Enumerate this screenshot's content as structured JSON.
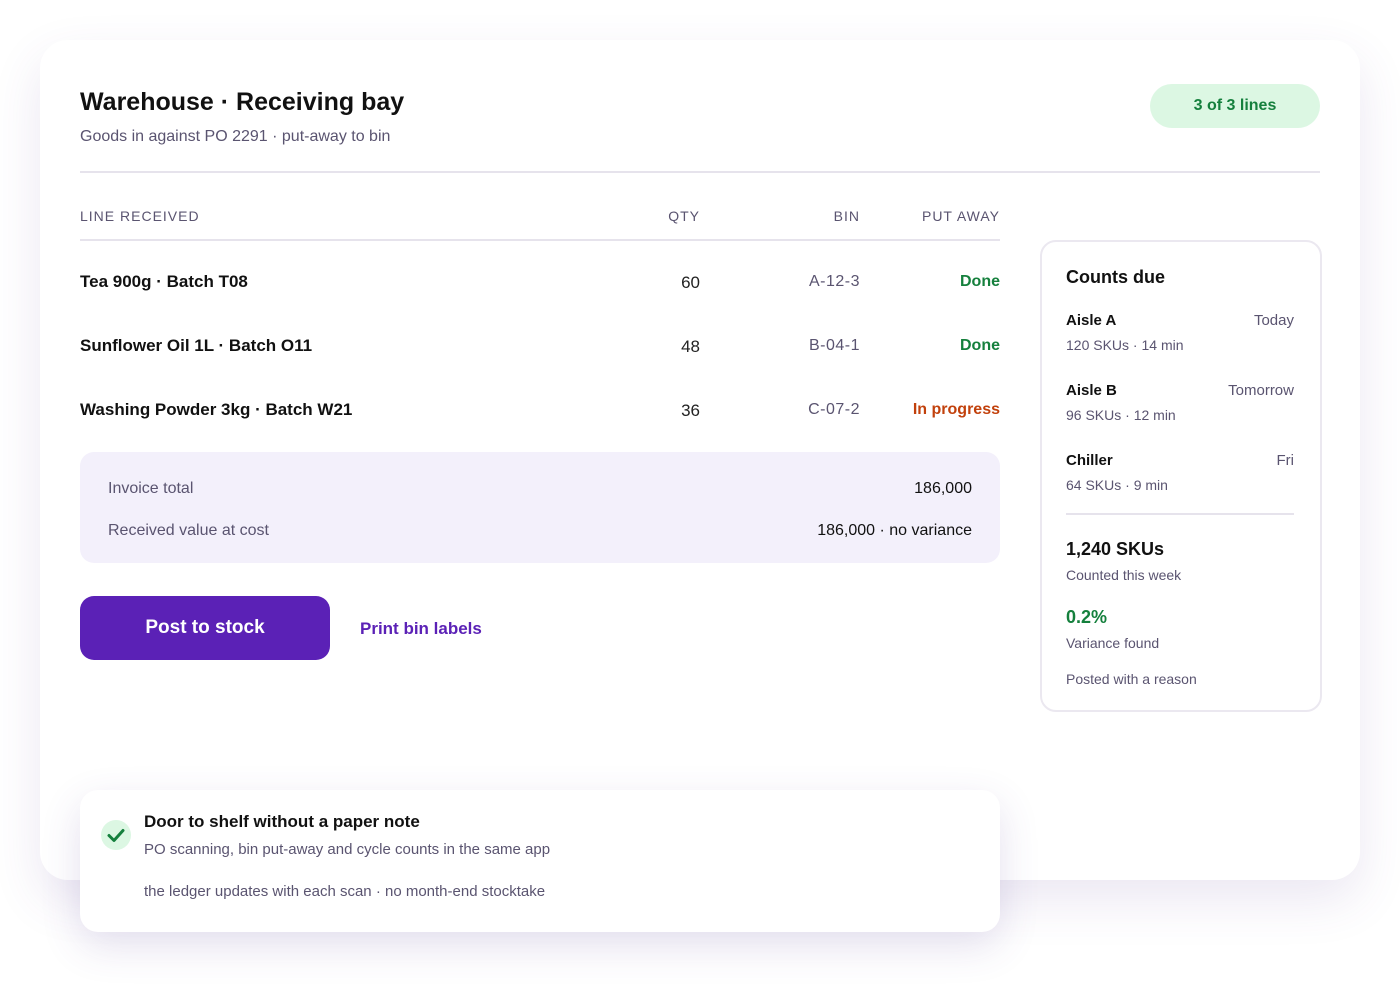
{
  "header": {
    "title": "Warehouse · Receiving bay",
    "subtitle": "Goods in against PO 2291 · put-away to bin",
    "badge": "3 of 3 lines"
  },
  "table": {
    "columns": [
      "LINE RECEIVED",
      "QTY",
      "BIN",
      "PUT AWAY"
    ],
    "rows": [
      [
        "Tea 900g · Batch T08",
        "60",
        "A-12-3",
        "Done"
      ],
      [
        "Sunflower Oil 1L · Batch O11",
        "48",
        "B-04-1",
        "Done"
      ],
      [
        "Washing Powder 3kg · Batch W21",
        "36",
        "C-07-2",
        "In progress"
      ]
    ]
  },
  "summary": {
    "rows": [
      [
        "Invoice total",
        "186,000"
      ],
      [
        "Received value at cost",
        "186,000 · no variance"
      ]
    ]
  },
  "actions": {
    "primary": "Post to stock",
    "secondary": "Print bin labels"
  },
  "counts": {
    "title": "Counts due",
    "items": [
      {
        "name": "Aisle A",
        "when": "Today",
        "detail": "120 SKUs · 14 min"
      },
      {
        "name": "Aisle B",
        "when": "Tomorrow",
        "detail": "96 SKUs · 12 min"
      },
      {
        "name": "Chiller",
        "when": "Fri",
        "detail": "64 SKUs · 9 min"
      }
    ],
    "stats": [
      {
        "value": "1,240 SKUs",
        "label": "Counted this week"
      },
      {
        "value": "0.2%",
        "label": "Variance found"
      }
    ],
    "note": "Posted with a reason"
  },
  "toast": {
    "title": "Door to shelf without a paper note",
    "line1": "PO scanning, bin put-away and cycle counts in the same app",
    "line2": "the ledger updates with each scan · no month-end stocktake"
  }
}
